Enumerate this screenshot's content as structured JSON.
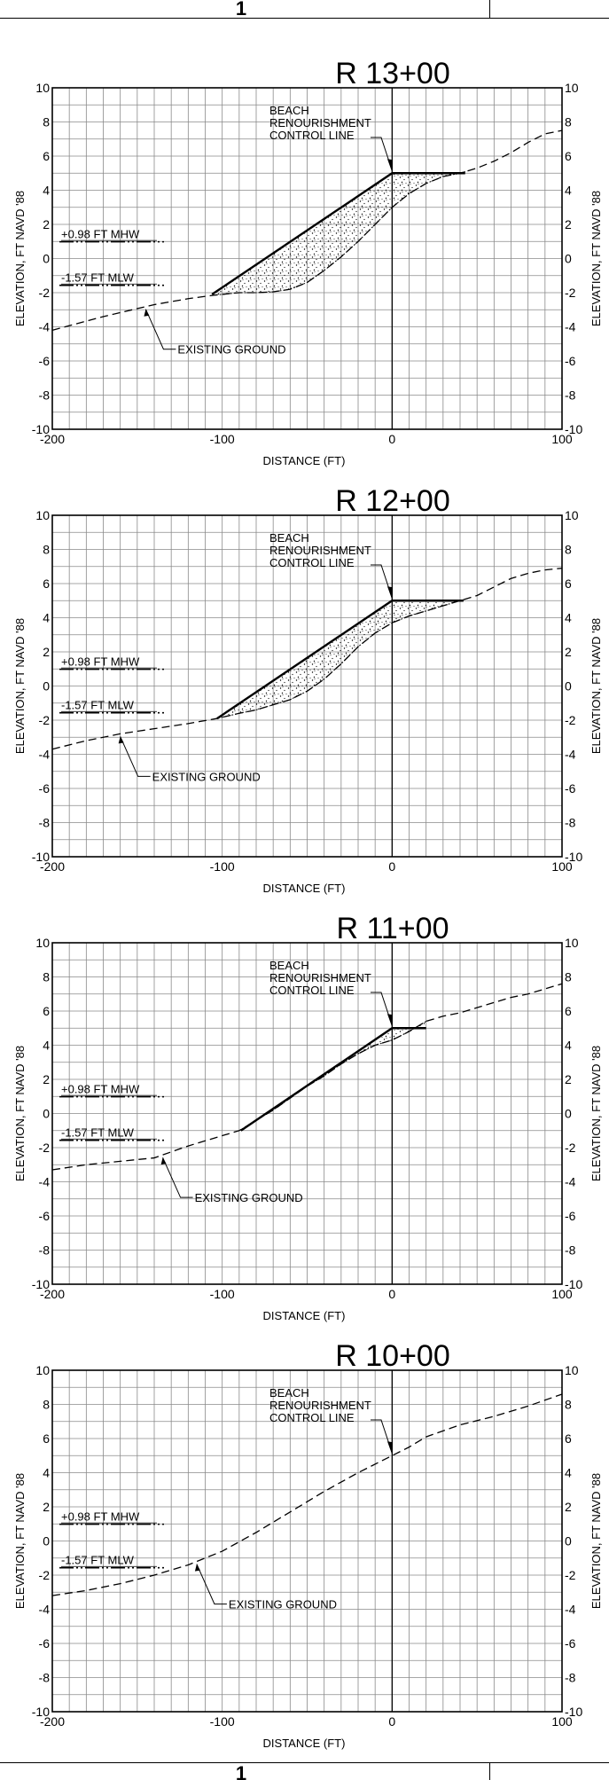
{
  "sheet_number": "1",
  "stipple_pattern": "sand-stipple",
  "colors": {
    "ink": "#000000",
    "grid": "#8a8a8a",
    "background": "#ffffff"
  },
  "chart_data": [
    {
      "type": "line",
      "title": "R 13+00",
      "xlabel": "DISTANCE (FT)",
      "ylabel": "ELEVATION, FT NAVD '88",
      "xlim": [
        -200,
        100
      ],
      "ylim": [
        -10,
        10
      ],
      "xticks": [
        "-200",
        "-100",
        "0",
        "100"
      ],
      "yticks": [
        "10",
        "8",
        "6",
        "4",
        "2",
        "0",
        "-2",
        "-4",
        "-6",
        "-8",
        "-10"
      ],
      "grid": true,
      "control_line_x": 0,
      "water_levels": [
        {
          "label": "+0.98 FT MHW",
          "y": 0.98
        },
        {
          "label": "-1.57 FT MLW",
          "y": -1.57
        }
      ],
      "annotations": {
        "control_line_label": [
          "BEACH",
          "RENOURISHMENT",
          "CONTROL LINE"
        ],
        "existing_ground_label": "EXISTING GROUND"
      },
      "series": [
        {
          "name": "EXISTING GROUND",
          "style": "dashed",
          "x": [
            -200,
            -170,
            -140,
            -120,
            -105,
            -90,
            -80,
            -70,
            -60,
            -50,
            -40,
            -30,
            -20,
            -10,
            0,
            10,
            20,
            30,
            40,
            50,
            60,
            70,
            80,
            90,
            100
          ],
          "y": [
            -4.2,
            -3.4,
            -2.7,
            -2.35,
            -2.15,
            -2.0,
            -2.0,
            -1.95,
            -1.8,
            -1.4,
            -0.7,
            0.1,
            1.0,
            2.0,
            3.0,
            3.8,
            4.4,
            4.8,
            5.0,
            5.3,
            5.7,
            6.2,
            6.8,
            7.3,
            7.5
          ]
        },
        {
          "name": "",
          "style": "solid",
          "x": [
            -106,
            0,
            43
          ],
          "y": [
            -2.1,
            5.0,
            5.0
          ]
        }
      ]
    },
    {
      "type": "line",
      "title": "R 12+00",
      "xlabel": "DISTANCE (FT)",
      "ylabel": "ELEVATION, FT NAVD '88",
      "xlim": [
        -200,
        100
      ],
      "ylim": [
        -10,
        10
      ],
      "xticks": [
        "-200",
        "-100",
        "0",
        "100"
      ],
      "yticks": [
        "10",
        "8",
        "6",
        "4",
        "2",
        "0",
        "-2",
        "-4",
        "-6",
        "-8",
        "-10"
      ],
      "grid": true,
      "control_line_x": 0,
      "water_levels": [
        {
          "label": "+0.98 FT MHW",
          "y": 0.98
        },
        {
          "label": "-1.57 FT MLW",
          "y": -1.57
        }
      ],
      "annotations": {
        "control_line_label": [
          "BEACH",
          "RENOURISHMENT",
          "CONTROL LINE"
        ],
        "existing_ground_label": "EXISTING GROUND"
      },
      "series": [
        {
          "name": "EXISTING GROUND",
          "style": "dashed",
          "x": [
            -200,
            -180,
            -160,
            -140,
            -120,
            -103,
            -90,
            -80,
            -70,
            -60,
            -50,
            -40,
            -30,
            -20,
            -10,
            0,
            10,
            20,
            30,
            40,
            50,
            60,
            70,
            80,
            90,
            100
          ],
          "y": [
            -3.7,
            -3.2,
            -2.8,
            -2.5,
            -2.2,
            -1.9,
            -1.6,
            -1.4,
            -1.1,
            -0.8,
            -0.3,
            0.4,
            1.3,
            2.3,
            3.1,
            3.7,
            4.1,
            4.4,
            4.7,
            5.0,
            5.3,
            5.8,
            6.3,
            6.6,
            6.8,
            6.9
          ]
        },
        {
          "name": "",
          "style": "solid",
          "x": [
            -103,
            0,
            42
          ],
          "y": [
            -1.9,
            5.0,
            5.0
          ]
        }
      ]
    },
    {
      "type": "line",
      "title": "R 11+00",
      "xlabel": "DISTANCE (FT)",
      "ylabel": "ELEVATION, FT NAVD '88",
      "xlim": [
        -200,
        100
      ],
      "ylim": [
        -10,
        10
      ],
      "xticks": [
        "-200",
        "-100",
        "0",
        "100"
      ],
      "yticks": [
        "10",
        "8",
        "6",
        "4",
        "2",
        "0",
        "-2",
        "-4",
        "-6",
        "-8",
        "-10"
      ],
      "grid": true,
      "control_line_x": 0,
      "water_levels": [
        {
          "label": "+0.98 FT MHW",
          "y": 0.98
        },
        {
          "label": "-1.57 FT MLW",
          "y": -1.57
        }
      ],
      "annotations": {
        "control_line_label": [
          "BEACH",
          "RENOURISHMENT",
          "CONTROL LINE"
        ],
        "existing_ground_label": "EXISTING GROUND"
      },
      "series": [
        {
          "name": "EXISTING GROUND",
          "style": "dashed",
          "x": [
            -200,
            -180,
            -160,
            -140,
            -120,
            -100,
            -90,
            -80,
            -70,
            -60,
            -50,
            -40,
            -30,
            -20,
            -10,
            0,
            10,
            20,
            30,
            40,
            50,
            60,
            70,
            80,
            90,
            100
          ],
          "y": [
            -3.3,
            -3.0,
            -2.8,
            -2.6,
            -1.9,
            -1.3,
            -1.0,
            -0.4,
            0.2,
            0.9,
            1.6,
            2.2,
            2.9,
            3.5,
            4.0,
            4.3,
            4.8,
            5.4,
            5.7,
            5.9,
            6.2,
            6.5,
            6.8,
            7.0,
            7.3,
            7.6
          ]
        },
        {
          "name": "",
          "style": "solid",
          "x": [
            -89,
            0,
            20
          ],
          "y": [
            -1.0,
            5.0,
            5.0
          ]
        }
      ]
    },
    {
      "type": "line",
      "title": "R 10+00",
      "xlabel": "DISTANCE (FT)",
      "ylabel": "ELEVATION, FT NAVD '88",
      "xlim": [
        -200,
        100
      ],
      "ylim": [
        -10,
        10
      ],
      "xticks": [
        "-200",
        "-100",
        "0",
        "100"
      ],
      "yticks": [
        "10",
        "8",
        "6",
        "4",
        "2",
        "0",
        "-2",
        "-4",
        "-6",
        "-8",
        "-10"
      ],
      "grid": true,
      "control_line_x": 0,
      "water_levels": [
        {
          "label": "+0.98 FT MHW",
          "y": 0.98
        },
        {
          "label": "-1.57 FT MLW",
          "y": -1.57
        }
      ],
      "annotations": {
        "control_line_label": [
          "BEACH",
          "RENOURISHMENT",
          "CONTROL LINE"
        ],
        "existing_ground_label": "EXISTING GROUND"
      },
      "series": [
        {
          "name": "EXISTING GROUND",
          "style": "dashed",
          "x": [
            -200,
            -180,
            -160,
            -140,
            -120,
            -100,
            -80,
            -60,
            -40,
            -20,
            0,
            10,
            20,
            40,
            60,
            80,
            100
          ],
          "y": [
            -3.2,
            -2.9,
            -2.5,
            -2.0,
            -1.4,
            -0.6,
            0.5,
            1.7,
            2.9,
            4.0,
            5.0,
            5.5,
            6.1,
            6.8,
            7.3,
            7.9,
            8.6
          ]
        }
      ]
    }
  ]
}
